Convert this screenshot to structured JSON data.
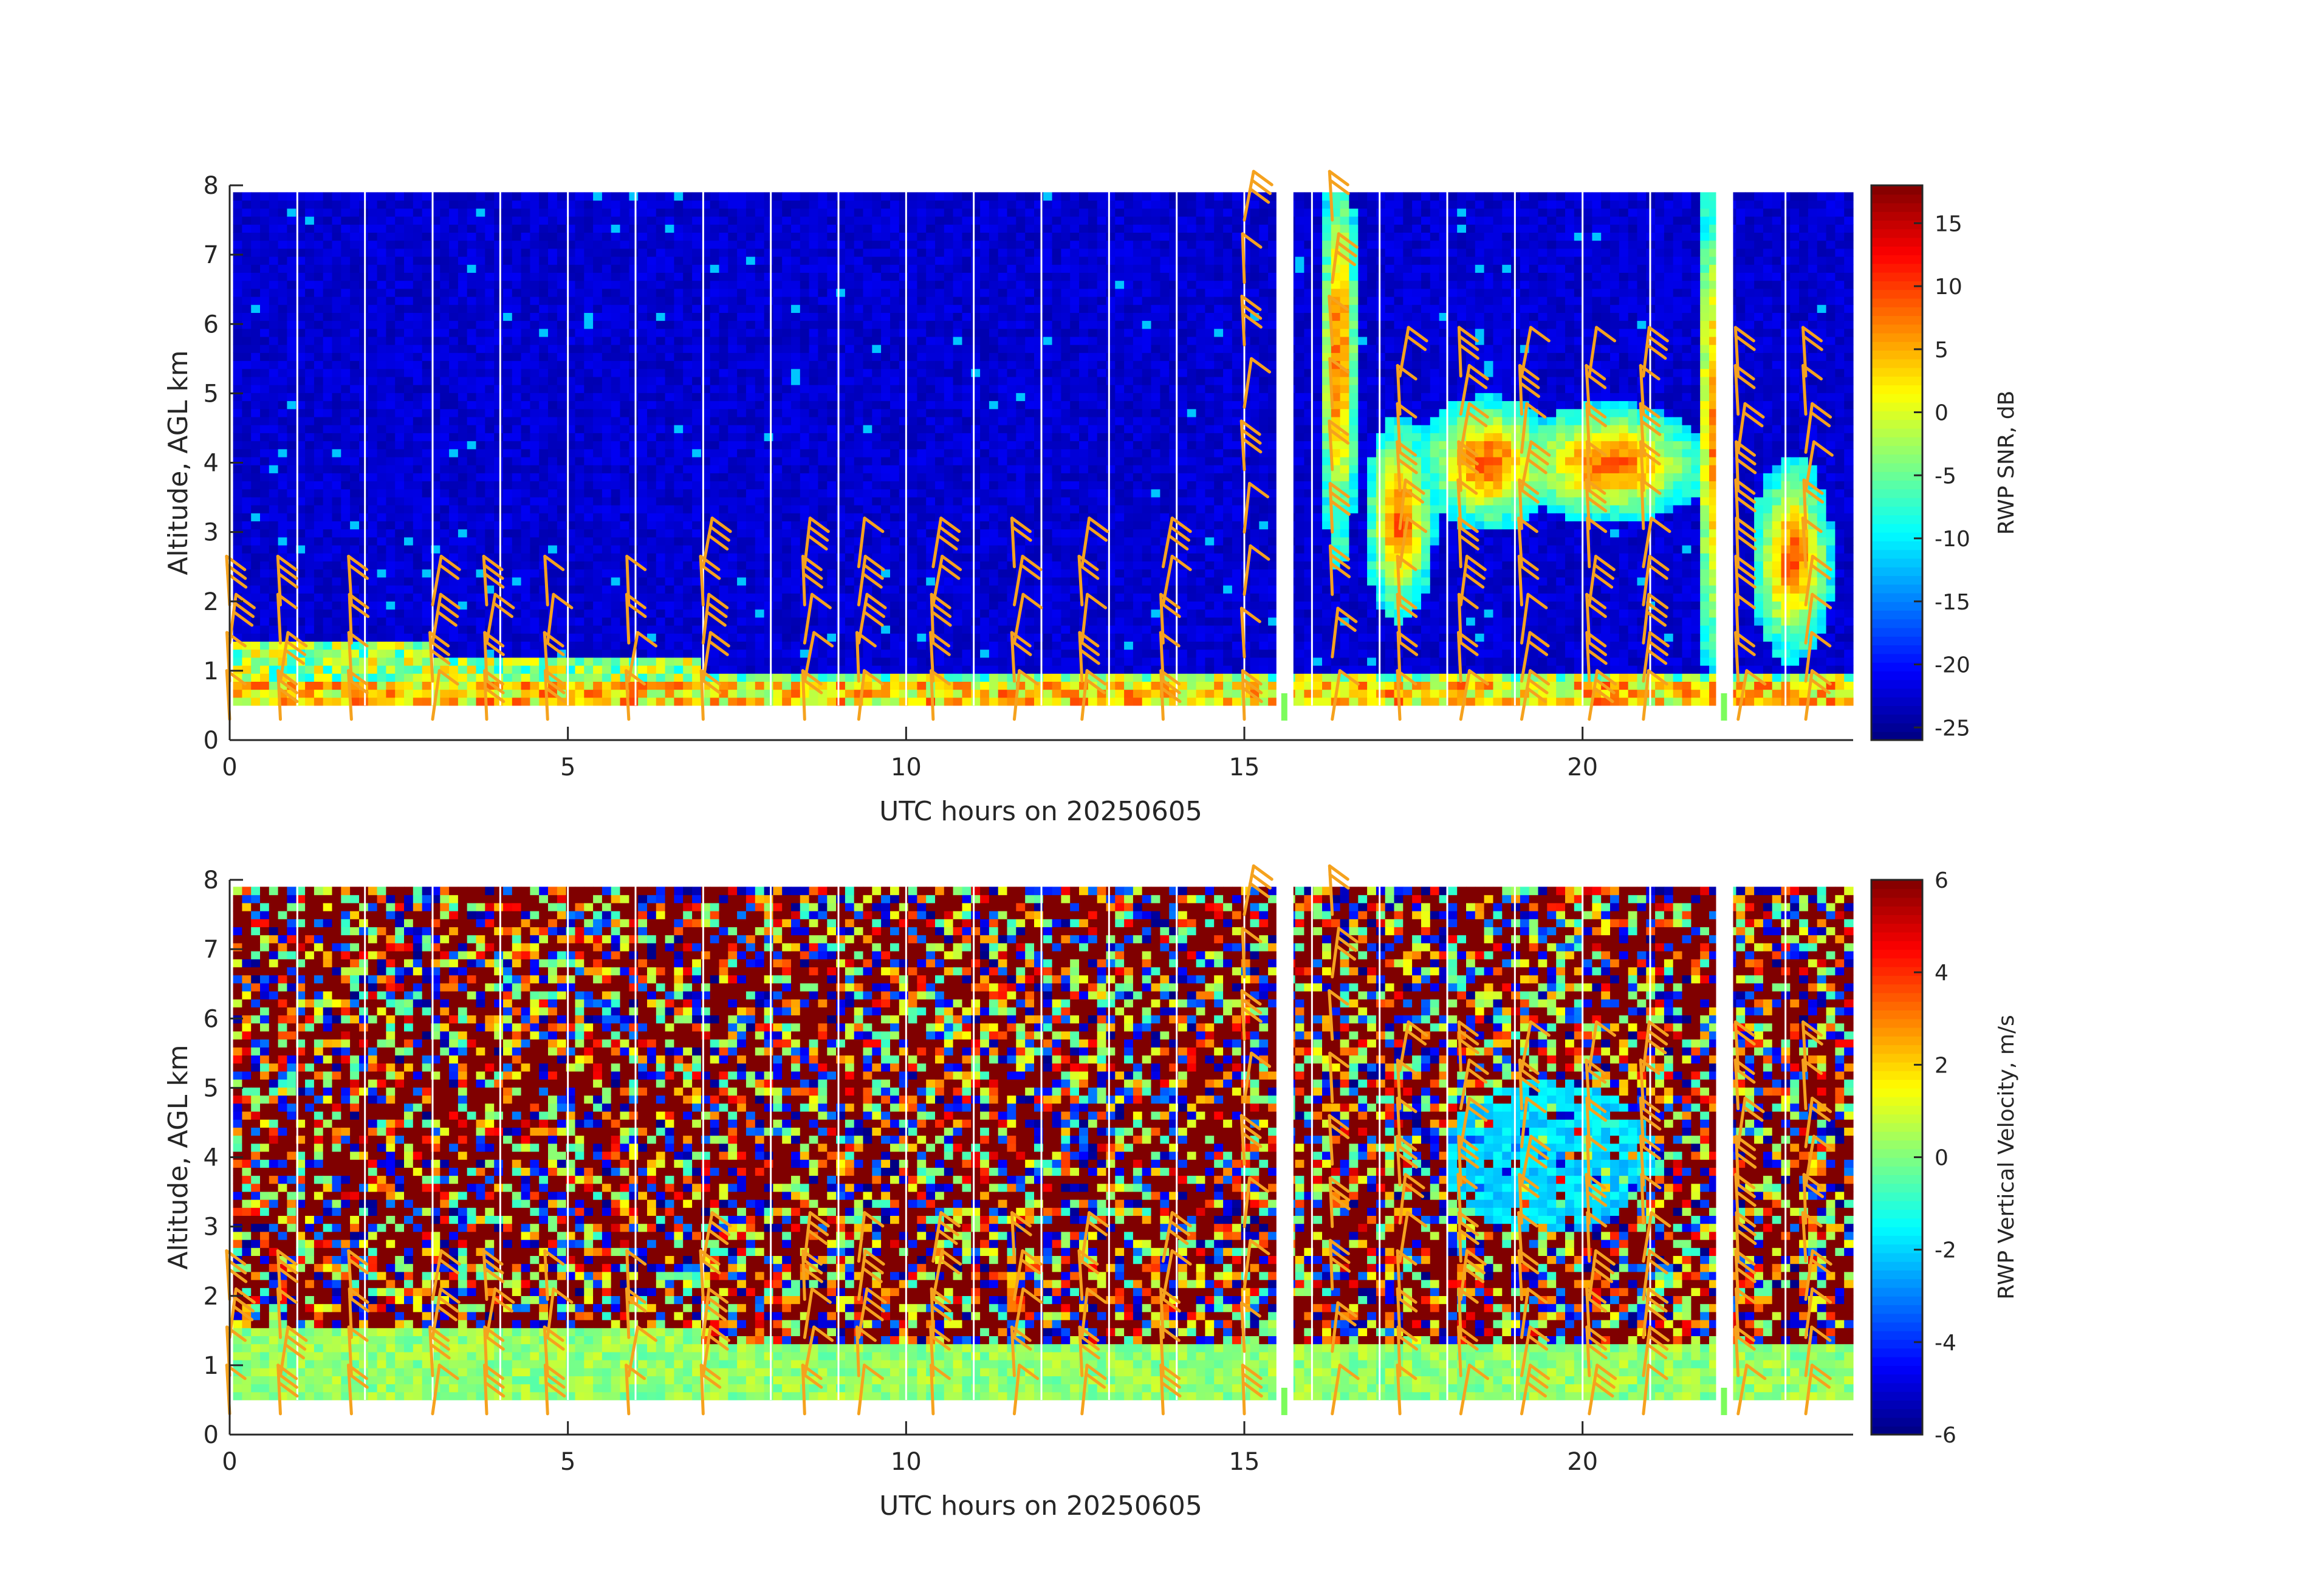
{
  "figure": {
    "description_type": "radar wind profiler time-height plots",
    "background": "#ffffff",
    "barb_color": "#f5a21e",
    "colormap": "jet"
  },
  "chart_data": [
    {
      "type": "heatmap",
      "title": "",
      "xlabel": "UTC hours on 20250605",
      "ylabel": "Altitude, AGL km",
      "xlim": [
        0,
        24
      ],
      "ylim": [
        0,
        8
      ],
      "xticks": [
        0,
        5,
        10,
        15,
        20
      ],
      "yticks": [
        0,
        1,
        2,
        3,
        4,
        5,
        6,
        7,
        8
      ],
      "colorbar": {
        "label": "RWP SNR, dB",
        "range": [
          -26,
          18
        ],
        "ticks": [
          -25,
          -20,
          -15,
          -10,
          -5,
          0,
          5,
          10,
          15
        ]
      },
      "field": "snr",
      "data_gaps_hours": [
        15.6,
        22.1
      ],
      "gate_range_km": [
        0.5,
        7.9
      ],
      "overlay": "wind barbs (orange)"
    },
    {
      "type": "heatmap",
      "title": "",
      "xlabel": "UTC hours on 20250605",
      "ylabel": "Altitude, AGL km",
      "xlim": [
        0,
        24
      ],
      "ylim": [
        0,
        8
      ],
      "xticks": [
        0,
        5,
        10,
        15,
        20
      ],
      "yticks": [
        0,
        1,
        2,
        3,
        4,
        5,
        6,
        7,
        8
      ],
      "colorbar": {
        "label": "RWP Vertical Velocity, m/s",
        "range": [
          -6,
          6
        ],
        "ticks": [
          -6,
          -4,
          -2,
          0,
          2,
          4,
          6
        ]
      },
      "field": "vertical_velocity",
      "data_gaps_hours": [
        15.6,
        22.1
      ],
      "gate_range_km": [
        0.5,
        7.9
      ],
      "overlay": "wind barbs (orange)"
    }
  ]
}
